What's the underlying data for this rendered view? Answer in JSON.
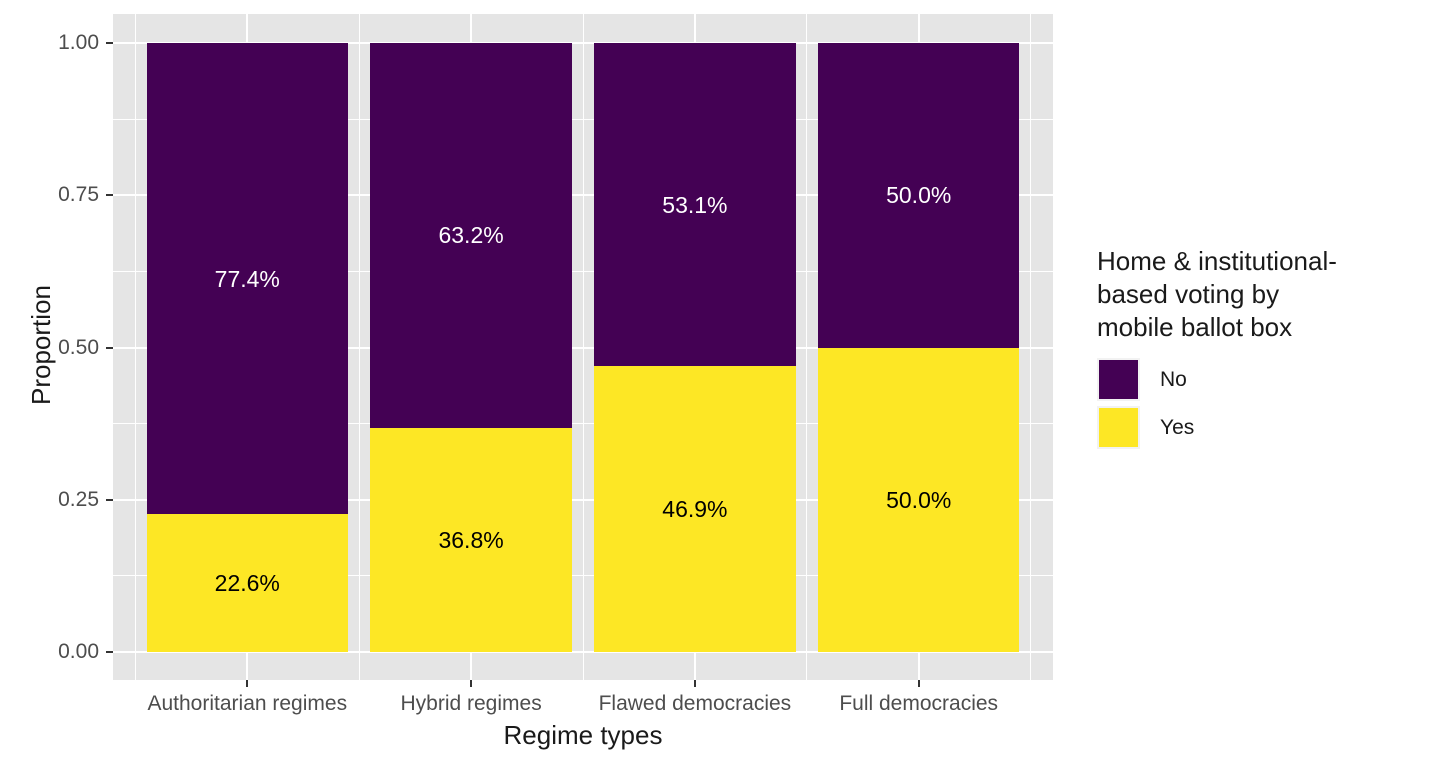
{
  "figure": {
    "background": "#FFFFFF",
    "panel_background": "#E5E5E5",
    "gridline_color": "#FFFFFF",
    "tick_mark_color": "#333333",
    "tick_label_color": "#4D4D4D",
    "axis_title_color": "#1A1A1A"
  },
  "chart_data": {
    "type": "bar",
    "stacked": true,
    "orientation": "vertical",
    "xlabel": "Regime types",
    "ylabel": "Proportion",
    "ylim": [
      0,
      1
    ],
    "grid": true,
    "categories": [
      "Authoritarian regimes",
      "Hybrid regimes",
      "Flawed democracies",
      "Full democracies"
    ],
    "series": [
      {
        "name": "No",
        "color": "#440154",
        "values": [
          0.774,
          0.632,
          0.531,
          0.5
        ],
        "labels": [
          "77.4%",
          "63.2%",
          "53.1%",
          "50.0%"
        ],
        "label_color": "#FFFFFF"
      },
      {
        "name": "Yes",
        "color": "#FDE725",
        "values": [
          0.226,
          0.368,
          0.469,
          0.5
        ],
        "labels": [
          "22.6%",
          "36.8%",
          "46.9%",
          "50.0%"
        ],
        "label_color": "#000000"
      }
    ],
    "y_ticks": [
      {
        "value": 0.0,
        "label": "0.00"
      },
      {
        "value": 0.25,
        "label": "0.25"
      },
      {
        "value": 0.5,
        "label": "0.50"
      },
      {
        "value": 0.75,
        "label": "0.75"
      },
      {
        "value": 1.0,
        "label": "1.00"
      }
    ],
    "y_minor_ticks": [
      0.125,
      0.375,
      0.625,
      0.875
    ],
    "legend": {
      "position": "right",
      "title": "Home & institutional-\nbased voting by\nmobile ballot box",
      "entries": [
        {
          "label": "No",
          "color": "#440154"
        },
        {
          "label": "Yes",
          "color": "#FDE725"
        }
      ]
    }
  }
}
